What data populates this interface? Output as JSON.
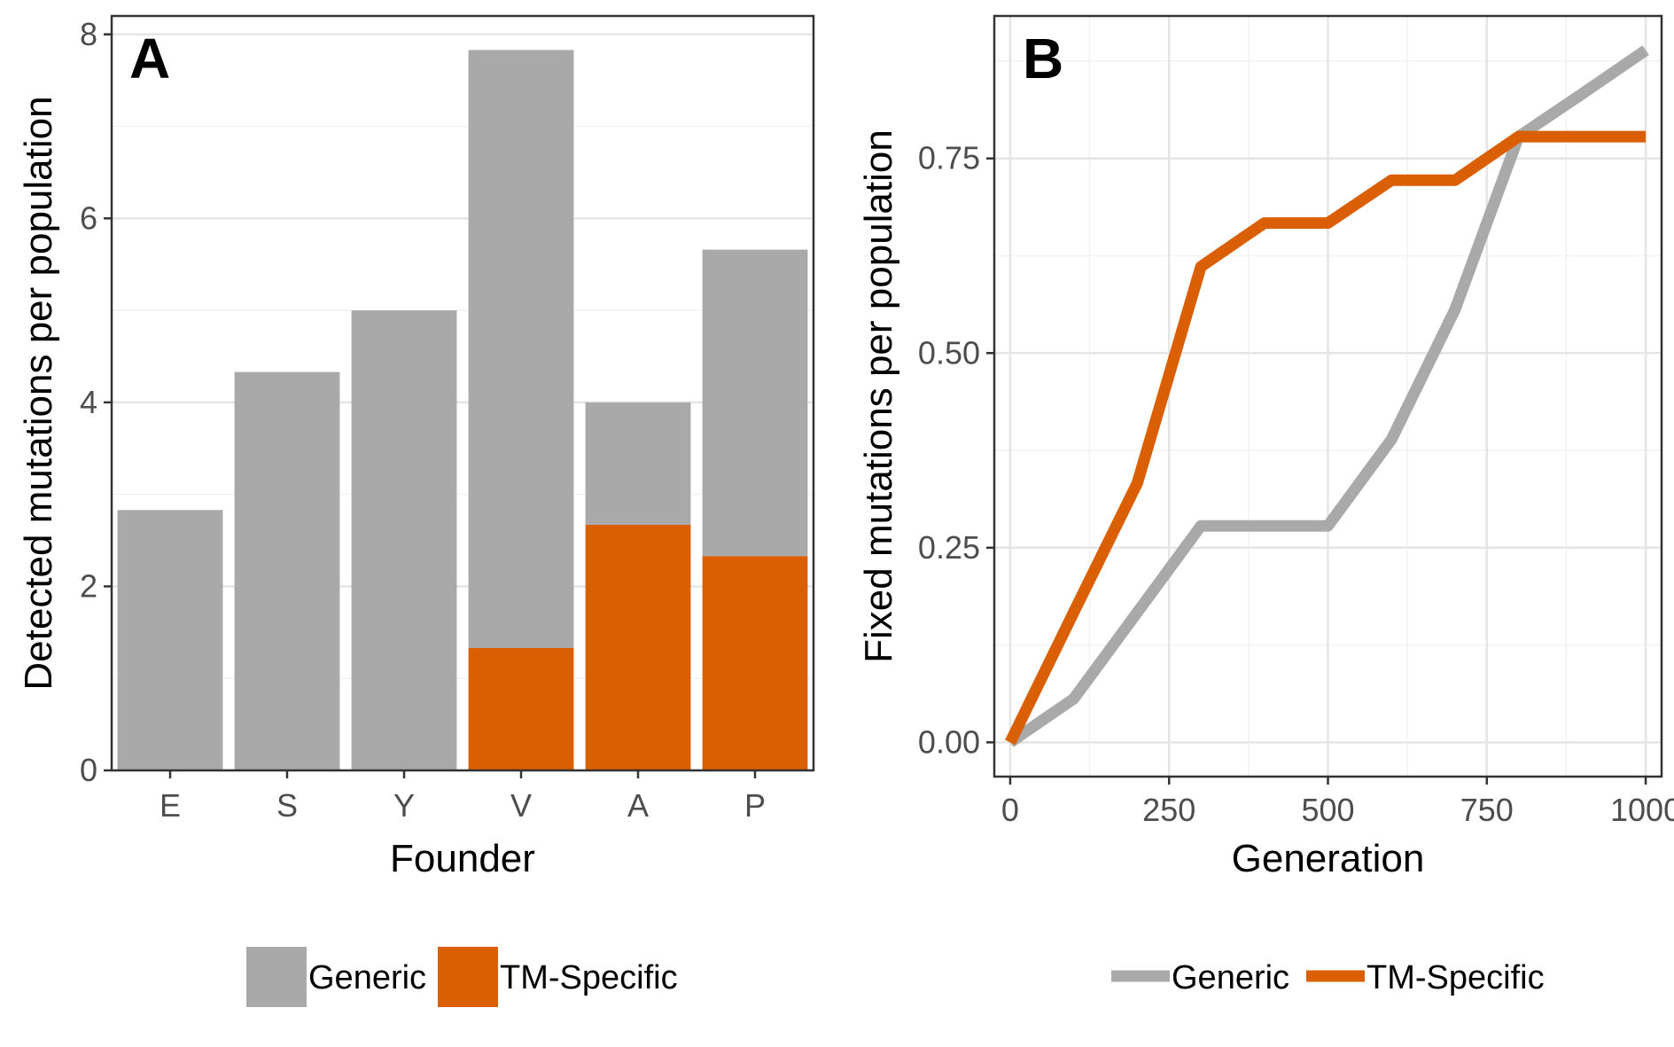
{
  "chart_data": [
    {
      "type": "bar",
      "panel_label": "A",
      "xlabel": "Founder",
      "ylabel": "Detected mutations per population",
      "categories": [
        "E",
        "S",
        "Y",
        "V",
        "A",
        "P"
      ],
      "stacked": true,
      "series": [
        {
          "name": "Generic",
          "values": [
            2.83,
            4.33,
            5.0,
            6.5,
            1.33,
            3.33
          ],
          "color": "#a9a9a9"
        },
        {
          "name": "TM-Specific",
          "values": [
            0,
            0,
            0,
            1.33,
            2.67,
            2.33
          ],
          "color": "#d95f02"
        }
      ],
      "ylim": [
        0,
        8.2
      ],
      "yticks": [
        0,
        2,
        4,
        6,
        8
      ],
      "grid": true,
      "legend": "bottom"
    },
    {
      "type": "line",
      "panel_label": "B",
      "xlabel": "Generation",
      "ylabel": "Fixed mutations per population",
      "x": [
        0,
        100,
        200,
        300,
        400,
        500,
        600,
        700,
        800,
        900,
        1000
      ],
      "series": [
        {
          "name": "Generic",
          "values": [
            0,
            0.056,
            0.167,
            0.278,
            0.278,
            0.278,
            0.389,
            0.556,
            0.778,
            0.833,
            0.889
          ],
          "color": "#a9a9a9"
        },
        {
          "name": "TM-Specific",
          "values": [
            0,
            0.167,
            0.333,
            0.611,
            0.667,
            0.667,
            0.722,
            0.722,
            0.778,
            0.778,
            0.778
          ],
          "color": "#d95f02"
        }
      ],
      "xlim": [
        -25,
        1025
      ],
      "ylim": [
        -0.044,
        0.933
      ],
      "xticks": [
        0,
        250,
        500,
        750,
        1000
      ],
      "yticks": [
        0,
        0.25,
        0.5,
        0.75
      ],
      "ytick_labels": [
        "0.00",
        "0.25",
        "0.50",
        "0.75"
      ],
      "grid": true,
      "legend": "bottom"
    }
  ]
}
